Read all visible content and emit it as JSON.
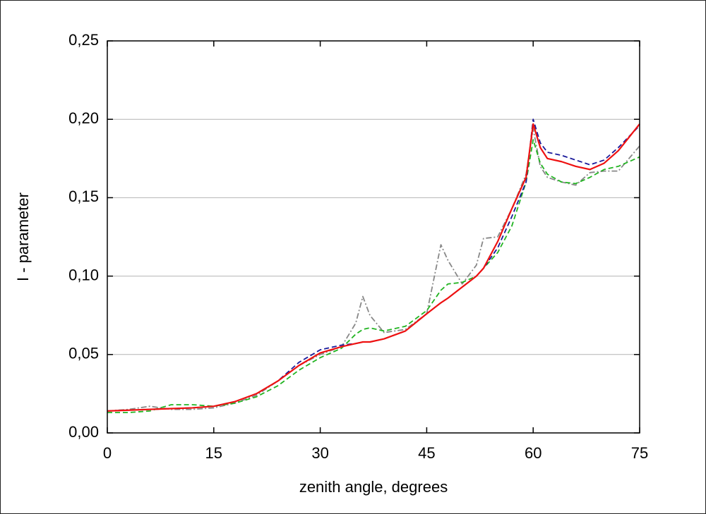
{
  "chart_data": {
    "type": "line",
    "x_label": "zenith angle, degrees",
    "y_label": "I - parameter",
    "x": [
      0,
      3,
      6,
      9,
      12,
      15,
      18,
      21,
      24,
      27,
      30,
      33,
      35,
      36,
      37,
      39,
      42,
      45,
      47,
      48,
      50,
      52,
      53,
      55,
      57,
      59,
      60,
      61,
      62,
      64,
      66,
      68,
      70,
      72,
      75
    ],
    "series": [
      {
        "color": "#888888",
        "style": "dashdot",
        "values": [
          0.014,
          0.015,
          0.017,
          0.015,
          0.015,
          0.016,
          0.019,
          0.024,
          0.033,
          0.043,
          0.05,
          0.055,
          0.07,
          0.087,
          0.075,
          0.064,
          0.066,
          0.076,
          0.12,
          0.11,
          0.095,
          0.107,
          0.124,
          0.125,
          0.143,
          0.165,
          0.194,
          0.17,
          0.163,
          0.16,
          0.158,
          0.166,
          0.167,
          0.167,
          0.183
        ]
      },
      {
        "color": "#22b422",
        "style": "dashed",
        "values": [
          0.013,
          0.013,
          0.014,
          0.018,
          0.018,
          0.017,
          0.019,
          0.023,
          0.03,
          0.04,
          0.048,
          0.054,
          0.063,
          0.066,
          0.067,
          0.065,
          0.068,
          0.078,
          0.091,
          0.095,
          0.096,
          0.1,
          0.105,
          0.115,
          0.132,
          0.16,
          0.187,
          0.172,
          0.165,
          0.16,
          0.159,
          0.163,
          0.168,
          0.17,
          0.176
        ]
      },
      {
        "color": "#1a1a9a",
        "style": "dashed",
        "values": [
          0.014,
          0.0145,
          0.015,
          0.0155,
          0.016,
          0.017,
          0.02,
          0.025,
          0.033,
          0.045,
          0.053,
          0.056,
          0.057,
          0.058,
          0.058,
          0.06,
          0.065,
          0.076,
          0.083,
          0.086,
          0.093,
          0.1,
          0.105,
          0.118,
          0.138,
          0.16,
          0.2,
          0.185,
          0.179,
          0.177,
          0.174,
          0.171,
          0.174,
          0.182,
          0.196
        ]
      },
      {
        "color": "#ee1111",
        "style": "solid",
        "values": [
          0.014,
          0.0145,
          0.015,
          0.0155,
          0.016,
          0.017,
          0.02,
          0.025,
          0.033,
          0.043,
          0.051,
          0.055,
          0.057,
          0.058,
          0.058,
          0.06,
          0.065,
          0.076,
          0.083,
          0.086,
          0.093,
          0.1,
          0.105,
          0.122,
          0.143,
          0.163,
          0.197,
          0.182,
          0.175,
          0.173,
          0.17,
          0.168,
          0.172,
          0.18,
          0.197
        ]
      }
    ],
    "xlim": [
      0,
      75
    ],
    "xticks": [
      0,
      15,
      30,
      45,
      60,
      75
    ],
    "ylim": [
      0,
      0.25
    ],
    "yticks": [
      {
        "value": 0,
        "label": "0,00"
      },
      {
        "value": 0.05,
        "label": "0,05"
      },
      {
        "value": 0.1,
        "label": "0,10"
      },
      {
        "value": 0.15,
        "label": "0,15"
      },
      {
        "value": 0.2,
        "label": "0,20"
      },
      {
        "value": 0.25,
        "label": "0,25"
      }
    ],
    "grid": true
  }
}
